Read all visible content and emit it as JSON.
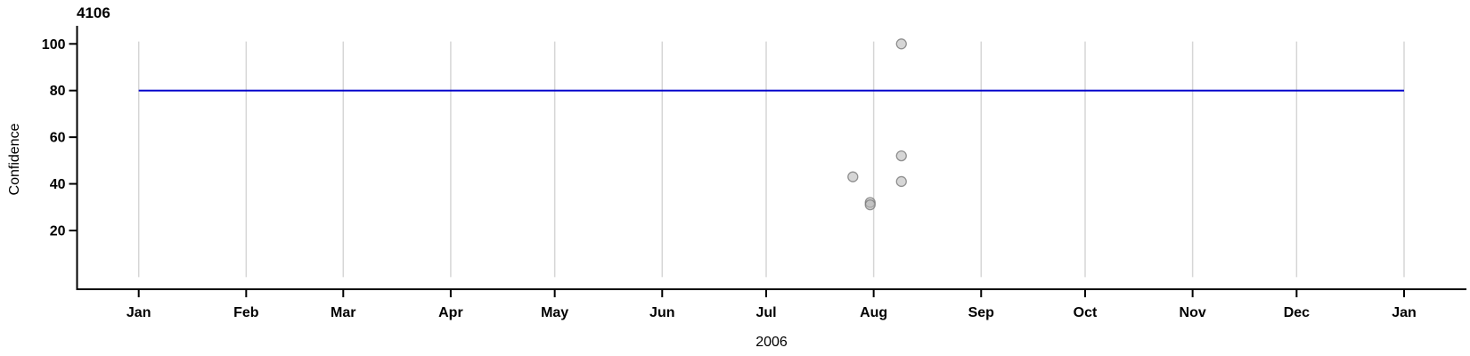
{
  "chart_data": {
    "type": "scatter",
    "title": "4106",
    "xlabel": "2006",
    "ylabel": "Confidence",
    "grid": "vertical-month-gridlines",
    "legend": "none",
    "x_axis": {
      "unit": "days_from_2006-01-01",
      "range": [
        0,
        365
      ],
      "tick_days": [
        0,
        31,
        59,
        90,
        120,
        151,
        181,
        212,
        243,
        273,
        304,
        334,
        365
      ],
      "tick_labels": [
        "Jan",
        "Feb",
        "Mar",
        "Apr",
        "May",
        "Jun",
        "Jul",
        "Aug",
        "Sep",
        "Oct",
        "Nov",
        "Dec",
        "Jan"
      ]
    },
    "y_axis": {
      "range": [
        0,
        100
      ],
      "ticks": [
        20,
        40,
        60,
        80,
        100
      ],
      "tick_labels": [
        "20",
        "40",
        "60",
        "80",
        "100"
      ]
    },
    "threshold_line": {
      "value": 80,
      "span_days": [
        0,
        365
      ],
      "color": "#0000cc"
    },
    "points": [
      {
        "date": "2006-07-26",
        "day": 206,
        "confidence": 43
      },
      {
        "date": "2006-07-31",
        "day": 211,
        "confidence": 32
      },
      {
        "date": "2006-07-31",
        "day": 211,
        "confidence": 31
      },
      {
        "date": "2006-08-09",
        "day": 220,
        "confidence": 100
      },
      {
        "date": "2006-08-09",
        "day": 220,
        "confidence": 52
      },
      {
        "date": "2006-08-09",
        "day": 220,
        "confidence": 41
      }
    ],
    "point_style": {
      "fill": "#b4b4b4",
      "fill_opacity": 0.55,
      "stroke": "#7a7a7a",
      "stroke_opacity": 0.8,
      "radius": 5.5
    },
    "colors": {
      "grid": "#d6d6d6",
      "axis": "#000000",
      "threshold": "#0000cc"
    }
  }
}
